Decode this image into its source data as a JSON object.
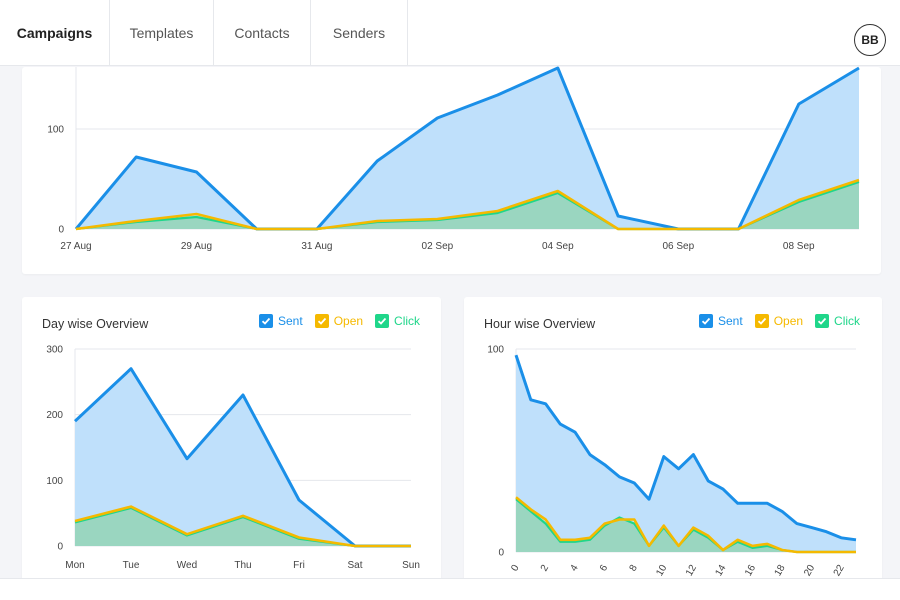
{
  "nav": {
    "tabs": [
      {
        "label": "Campaigns",
        "active": true
      },
      {
        "label": "Templates",
        "active": false
      },
      {
        "label": "Contacts",
        "active": false
      },
      {
        "label": "Senders",
        "active": false
      }
    ],
    "avatar_initials": "BB"
  },
  "colors": {
    "sent": "#1a8fe8",
    "sent_fill": "#bfe0fb",
    "open": "#f5b900",
    "click": "#1fd68a",
    "click_fill": "#9ad6c0"
  },
  "legend": {
    "sent": "Sent",
    "open": "Open",
    "click": "Click"
  },
  "day_card": {
    "title": "Day wise Overview"
  },
  "hour_card": {
    "title": "Hour wise Overview"
  },
  "chart_data": [
    {
      "id": "top",
      "type": "area",
      "title": "",
      "x": [
        "27 Aug",
        "28 Aug",
        "29 Aug",
        "30 Aug",
        "31 Aug",
        "01 Sep",
        "02 Sep",
        "03 Sep",
        "04 Sep",
        "05 Sep",
        "06 Sep",
        "07 Sep",
        "08 Sep",
        "09 Sep"
      ],
      "xticks": [
        "27 Aug",
        "29 Aug",
        "31 Aug",
        "02 Sep",
        "04 Sep",
        "06 Sep",
        "08 Sep"
      ],
      "yticks": [
        0,
        100
      ],
      "ylim": [
        0,
        162
      ],
      "series": [
        {
          "name": "Sent",
          "values": [
            0,
            72,
            57,
            0,
            0,
            68,
            111,
            134,
            161,
            13,
            0,
            0,
            125,
            161
          ]
        },
        {
          "name": "Open",
          "values": [
            0,
            8,
            15,
            0,
            0,
            8,
            10,
            18,
            38,
            0,
            0,
            0,
            29,
            49
          ]
        },
        {
          "name": "Click",
          "values": [
            0,
            7,
            12,
            0,
            0,
            7,
            9,
            16,
            36,
            0,
            0,
            0,
            27,
            47
          ]
        }
      ]
    },
    {
      "id": "day",
      "type": "area",
      "title": "Day wise Overview",
      "x": [
        "Mon",
        "Tue",
        "Wed",
        "Thu",
        "Fri",
        "Sat",
        "Sun"
      ],
      "xticks": [
        "Mon",
        "Tue",
        "Wed",
        "Thu",
        "Fri",
        "Sat",
        "Sun"
      ],
      "yticks": [
        0,
        100,
        200,
        300
      ],
      "ylim": [
        0,
        300
      ],
      "series": [
        {
          "name": "Sent",
          "values": [
            190,
            270,
            133,
            230,
            70,
            0,
            0
          ]
        },
        {
          "name": "Open",
          "values": [
            38,
            60,
            18,
            46,
            13,
            0,
            0
          ]
        },
        {
          "name": "Click",
          "values": [
            36,
            58,
            16,
            44,
            11,
            0,
            0
          ]
        }
      ]
    },
    {
      "id": "hour",
      "type": "area",
      "title": "Hour wise Overview",
      "x": [
        "0",
        "1",
        "2",
        "3",
        "4",
        "5",
        "6",
        "7",
        "8",
        "9",
        "10",
        "11",
        "12",
        "13",
        "14",
        "15",
        "16",
        "17",
        "18",
        "19",
        "20",
        "21",
        "22",
        "23"
      ],
      "xticks": [
        "0",
        "2",
        "4",
        "6",
        "8",
        "10",
        "12",
        "14",
        "16",
        "18",
        "20",
        "22"
      ],
      "yticks": [
        0,
        100
      ],
      "ylim": [
        0,
        100
      ],
      "series": [
        {
          "name": "Sent",
          "values": [
            97,
            75,
            73,
            63,
            59,
            48,
            43,
            37,
            34,
            26,
            47,
            41,
            48,
            35,
            31,
            24,
            24,
            24,
            20,
            14,
            12,
            10,
            7,
            6
          ]
        },
        {
          "name": "Open",
          "values": [
            27,
            21,
            16,
            6,
            6,
            7,
            14,
            16,
            16,
            3,
            13,
            3,
            12,
            8,
            1,
            6,
            3,
            4,
            1,
            0,
            0,
            0,
            0,
            0
          ]
        },
        {
          "name": "Click",
          "values": [
            26,
            20,
            14,
            5,
            5,
            6,
            13,
            17,
            14,
            3,
            12,
            3,
            11,
            7,
            1,
            5,
            2,
            3,
            1,
            0,
            0,
            0,
            0,
            0
          ]
        }
      ]
    }
  ]
}
